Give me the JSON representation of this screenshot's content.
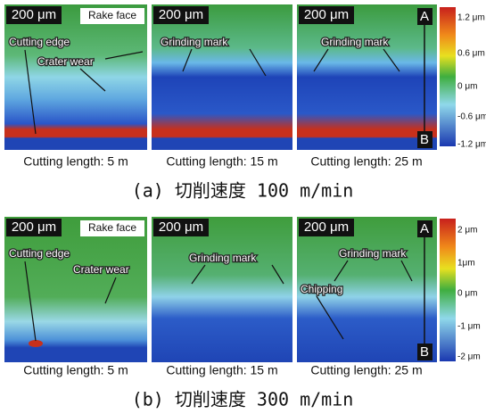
{
  "rows": [
    {
      "panels": [
        {
          "scale": "200 μm",
          "labels": [
            "Rake face",
            "Cutting edge",
            "Crater wear"
          ],
          "caption": "Cutting length: 5 m"
        },
        {
          "scale": "200 μm",
          "labels": [
            "Grinding mark"
          ],
          "caption": "Cutting length: 15 m"
        },
        {
          "scale": "200 μm",
          "labels": [
            "Grinding mark"
          ],
          "markers": [
            "A",
            "B"
          ],
          "caption": "Cutting length: 25 m"
        }
      ],
      "colorbar": [
        "1.2 μm",
        "0.6 μm",
        "0 μm",
        "-0.6 μm",
        "-1.2 μm"
      ],
      "label": "(a) 切削速度 100 m/min"
    },
    {
      "panels": [
        {
          "scale": "200 μm",
          "labels": [
            "Rake face",
            "Cutting edge",
            "Crater wear"
          ],
          "caption": "Cutting length: 5 m"
        },
        {
          "scale": "200 μm",
          "labels": [
            "Grinding mark"
          ],
          "caption": "Cutting length: 15 m"
        },
        {
          "scale": "200 μm",
          "labels": [
            "Grinding mark",
            "Chipping"
          ],
          "markers": [
            "A",
            "B"
          ],
          "caption": "Cutting length: 25 m"
        }
      ],
      "colorbar": [
        "2 μm",
        "1μm",
        "0 μm",
        "-1 μm",
        "-2 μm"
      ],
      "label": "(b) 切削速度 300 m/min"
    }
  ]
}
